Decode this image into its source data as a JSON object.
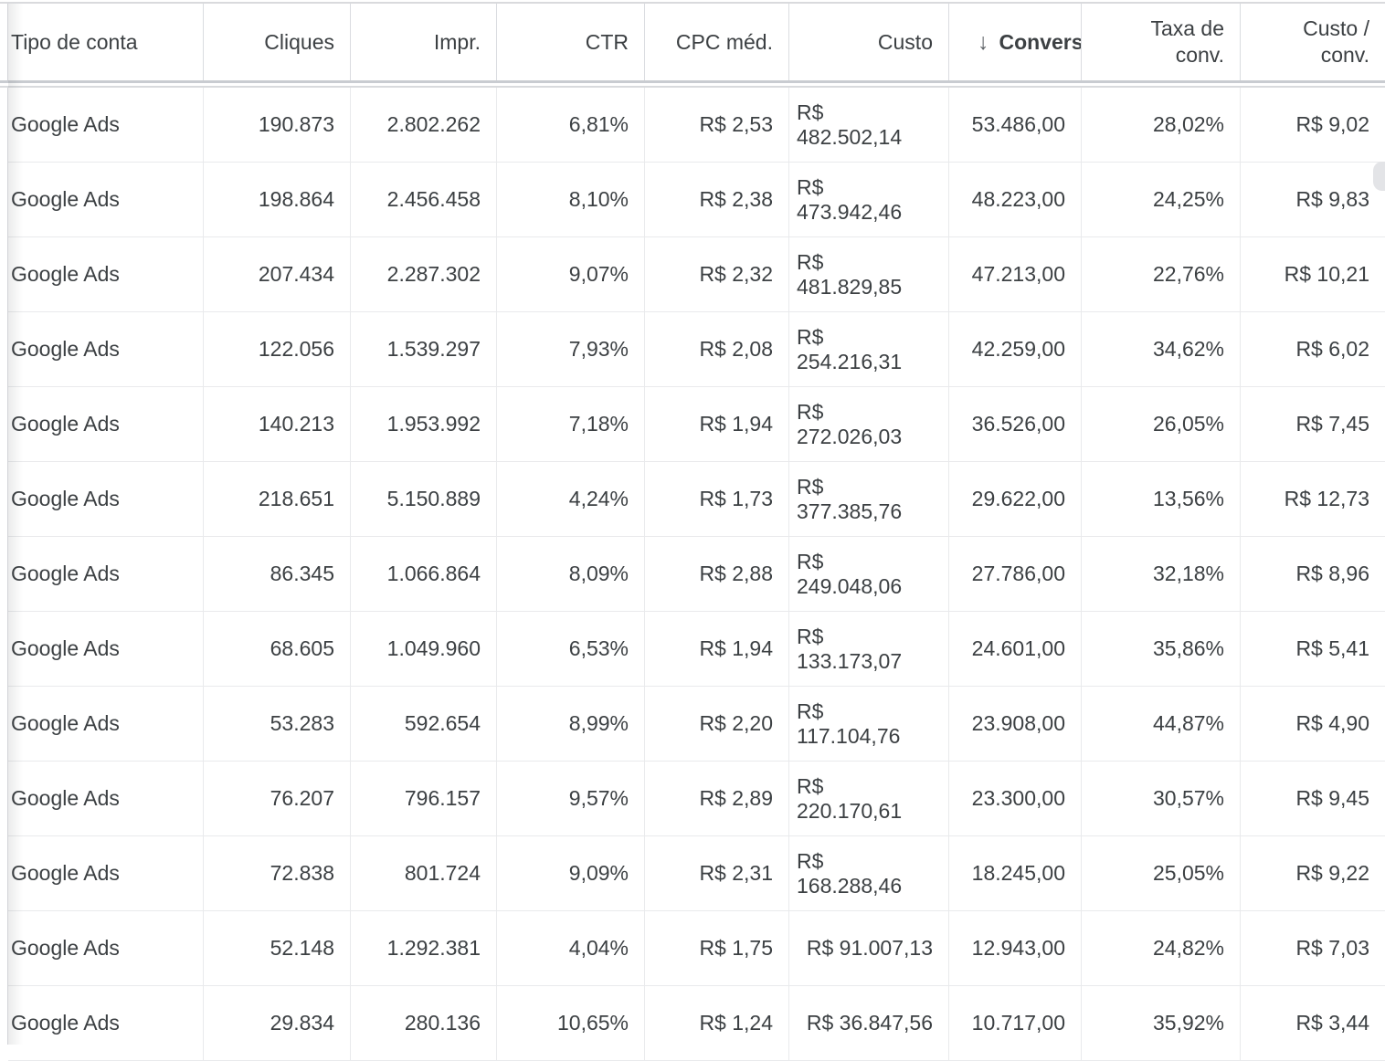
{
  "table": {
    "columns": [
      {
        "key": "account_type",
        "label": "Tipo de conta",
        "align": "left",
        "sorted": false
      },
      {
        "key": "clicks",
        "label": "Cliques",
        "align": "right",
        "sorted": false
      },
      {
        "key": "impressions",
        "label": "Impr.",
        "align": "right",
        "sorted": false
      },
      {
        "key": "ctr",
        "label": "CTR",
        "align": "right",
        "sorted": false
      },
      {
        "key": "avg_cpc",
        "label": "CPC méd.",
        "align": "right",
        "sorted": false
      },
      {
        "key": "cost",
        "label": "Custo",
        "align": "right",
        "sorted": false
      },
      {
        "key": "conversions",
        "label": "Convers",
        "align": "right",
        "sorted": true,
        "sort_direction": "descending"
      },
      {
        "key": "conv_rate",
        "label": "Taxa de\nconv.",
        "align": "right",
        "sorted": false
      },
      {
        "key": "cost_per_conv",
        "label": "Custo /\nconv.",
        "align": "right",
        "sorted": false
      }
    ],
    "rows": [
      [
        "Google Ads",
        "190.873",
        "2.802.262",
        "6,81%",
        "R$ 2,53",
        "R$ 482.502,14",
        "53.486,00",
        "28,02%",
        "R$ 9,02"
      ],
      [
        "Google Ads",
        "198.864",
        "2.456.458",
        "8,10%",
        "R$ 2,38",
        "R$ 473.942,46",
        "48.223,00",
        "24,25%",
        "R$ 9,83"
      ],
      [
        "Google Ads",
        "207.434",
        "2.287.302",
        "9,07%",
        "R$ 2,32",
        "R$ 481.829,85",
        "47.213,00",
        "22,76%",
        "R$ 10,21"
      ],
      [
        "Google Ads",
        "122.056",
        "1.539.297",
        "7,93%",
        "R$ 2,08",
        "R$ 254.216,31",
        "42.259,00",
        "34,62%",
        "R$ 6,02"
      ],
      [
        "Google Ads",
        "140.213",
        "1.953.992",
        "7,18%",
        "R$ 1,94",
        "R$ 272.026,03",
        "36.526,00",
        "26,05%",
        "R$ 7,45"
      ],
      [
        "Google Ads",
        "218.651",
        "5.150.889",
        "4,24%",
        "R$ 1,73",
        "R$ 377.385,76",
        "29.622,00",
        "13,56%",
        "R$ 12,73"
      ],
      [
        "Google Ads",
        "86.345",
        "1.066.864",
        "8,09%",
        "R$ 2,88",
        "R$ 249.048,06",
        "27.786,00",
        "32,18%",
        "R$ 8,96"
      ],
      [
        "Google Ads",
        "68.605",
        "1.049.960",
        "6,53%",
        "R$ 1,94",
        "R$ 133.173,07",
        "24.601,00",
        "35,86%",
        "R$ 5,41"
      ],
      [
        "Google Ads",
        "53.283",
        "592.654",
        "8,99%",
        "R$ 2,20",
        "R$ 117.104,76",
        "23.908,00",
        "44,87%",
        "R$ 4,90"
      ],
      [
        "Google Ads",
        "76.207",
        "796.157",
        "9,57%",
        "R$ 2,89",
        "R$ 220.170,61",
        "23.300,00",
        "30,57%",
        "R$ 9,45"
      ],
      [
        "Google Ads",
        "72.838",
        "801.724",
        "9,09%",
        "R$ 2,31",
        "R$ 168.288,46",
        "18.245,00",
        "25,05%",
        "R$ 9,22"
      ],
      [
        "Google Ads",
        "52.148",
        "1.292.381",
        "4,04%",
        "R$ 1,75",
        "R$ 91.007,13",
        "12.943,00",
        "24,82%",
        "R$ 7,03"
      ],
      [
        "Google Ads",
        "29.834",
        "280.136",
        "10,65%",
        "R$ 1,24",
        "R$ 36.847,56",
        "10.717,00",
        "35,92%",
        "R$ 3,44"
      ]
    ]
  },
  "icons": {
    "sort_descending": "↓"
  },
  "colors": {
    "text": "#3c4043",
    "header_border": "#dadce0",
    "row_border": "#e9eaec",
    "background": "#ffffff",
    "sort_arrow": "#5f6368"
  }
}
